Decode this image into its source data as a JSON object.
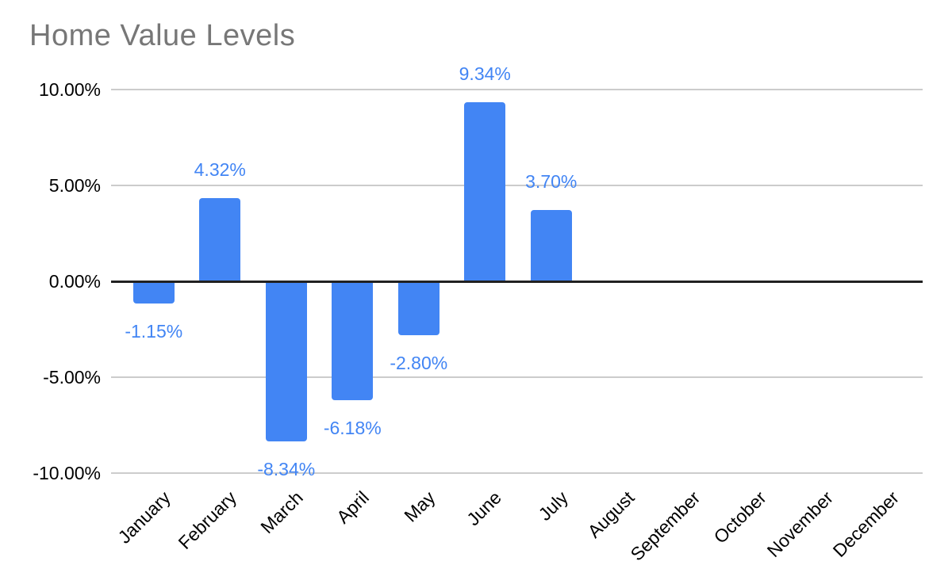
{
  "chart_data": {
    "type": "bar",
    "title": "Home Value Levels",
    "categories": [
      "January",
      "February",
      "March",
      "April",
      "May",
      "June",
      "July",
      "August",
      "September",
      "October",
      "November",
      "December"
    ],
    "values": [
      -1.15,
      4.32,
      -8.34,
      -6.18,
      -2.8,
      9.34,
      3.7,
      null,
      null,
      null,
      null,
      null
    ],
    "data_labels": [
      "-1.15%",
      "4.32%",
      "-8.34%",
      "-6.18%",
      "-2.80%",
      "9.34%",
      "3.70%",
      null,
      null,
      null,
      null,
      null
    ],
    "xlabel": "",
    "ylabel": "",
    "ylim": [
      -10,
      10
    ],
    "y_ticks": [
      {
        "label": "10.00%",
        "value": 10
      },
      {
        "label": "5.00%",
        "value": 5
      },
      {
        "label": "0.00%",
        "value": 0
      },
      {
        "label": "-5.00%",
        "value": -5
      },
      {
        "label": "-10.00%",
        "value": -10
      }
    ],
    "grid": true,
    "legend": "none",
    "colors": {
      "bar": "#4285f4",
      "data_label": "#4285f4",
      "title": "#777777",
      "axis_text": "#000000",
      "gridline": "#cccccc",
      "zero_line": "#212121",
      "background": "#ffffff"
    }
  }
}
